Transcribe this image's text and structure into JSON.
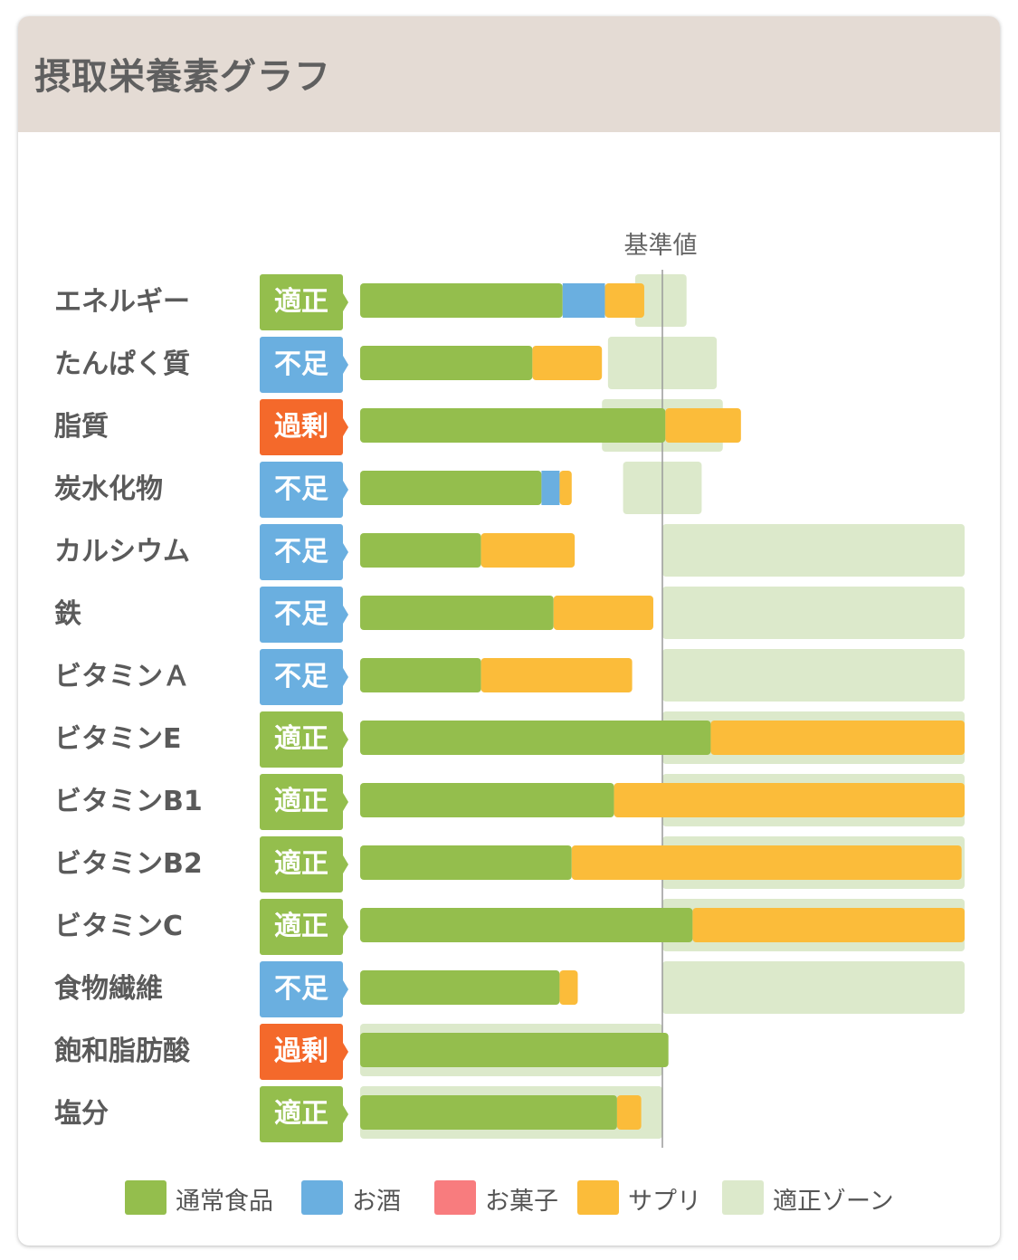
{
  "header": {
    "title": "摂取栄養素グラフ"
  },
  "colors": {
    "normal_food": "#94be4d",
    "alcohol": "#6aafe0",
    "sweets": "#f87c7e",
    "supplement": "#fbbc3a",
    "zone": "#dce9cb",
    "status_ok": "#94be4d",
    "status_low": "#6aafe0",
    "status_over": "#f4692b",
    "reference_line": "#9a9a9a"
  },
  "legend": [
    {
      "label": "通常食品",
      "color_key": "normal_food"
    },
    {
      "label": "お酒",
      "color_key": "alcohol"
    },
    {
      "label": "お菓子",
      "color_key": "sweets"
    },
    {
      "label": "サプリ",
      "color_key": "supplement"
    },
    {
      "label": "適正ゾーン",
      "color_key": "zone"
    }
  ],
  "chart_data": {
    "type": "bar",
    "orientation": "horizontal",
    "stacked": true,
    "value_unit": "% of reference value",
    "reference_label": "基準値",
    "reference_value": 100,
    "xlim": [
      0,
      200
    ],
    "series_keys": [
      "normal_food",
      "alcohol",
      "sweets",
      "supplement"
    ],
    "categories": [
      {
        "name": "エネルギー",
        "status": "適正",
        "status_key": "ok",
        "values": [
          67,
          14,
          0,
          13
        ],
        "zone": [
          91,
          108
        ]
      },
      {
        "name": "たんぱく質",
        "status": "不足",
        "status_key": "low",
        "values": [
          57,
          0,
          0,
          23
        ],
        "zone": [
          82,
          118
        ]
      },
      {
        "name": "脂質",
        "status": "過剰",
        "status_key": "over",
        "values": [
          101,
          0,
          0,
          25
        ],
        "zone": [
          80,
          120
        ]
      },
      {
        "name": "炭水化物",
        "status": "不足",
        "status_key": "low",
        "values": [
          60,
          6,
          0,
          4
        ],
        "zone": [
          87,
          113
        ]
      },
      {
        "name": "カルシウム",
        "status": "不足",
        "status_key": "low",
        "values": [
          40,
          0,
          0,
          31
        ],
        "zone": [
          100,
          200
        ]
      },
      {
        "name": "鉄",
        "status": "不足",
        "status_key": "low",
        "values": [
          64,
          0,
          0,
          33
        ],
        "zone": [
          100,
          200
        ]
      },
      {
        "name": "ビタミンＡ",
        "status": "不足",
        "status_key": "low",
        "values": [
          40,
          0,
          0,
          50
        ],
        "zone": [
          100,
          200
        ]
      },
      {
        "name": "ビタミンE",
        "status": "適正",
        "status_key": "ok",
        "values": [
          116,
          0,
          0,
          84
        ],
        "zone": [
          100,
          200
        ]
      },
      {
        "name": "ビタミンB1",
        "status": "適正",
        "status_key": "ok",
        "values": [
          84,
          0,
          0,
          116
        ],
        "zone": [
          100,
          200
        ]
      },
      {
        "name": "ビタミンB2",
        "status": "適正",
        "status_key": "ok",
        "values": [
          70,
          0,
          0,
          129
        ],
        "zone": [
          100,
          200
        ]
      },
      {
        "name": "ビタミンC",
        "status": "適正",
        "status_key": "ok",
        "values": [
          110,
          0,
          0,
          90
        ],
        "zone": [
          100,
          200
        ]
      },
      {
        "name": "食物繊維",
        "status": "不足",
        "status_key": "low",
        "values": [
          66,
          0,
          0,
          6
        ],
        "zone": [
          100,
          200
        ]
      },
      {
        "name": "飽和脂肪酸",
        "status": "過剰",
        "status_key": "over",
        "values": [
          102,
          0,
          0,
          0
        ],
        "zone": [
          0,
          100
        ]
      },
      {
        "name": "塩分",
        "status": "適正",
        "status_key": "ok",
        "values": [
          85,
          0,
          0,
          8
        ],
        "zone": [
          0,
          100
        ]
      }
    ]
  }
}
